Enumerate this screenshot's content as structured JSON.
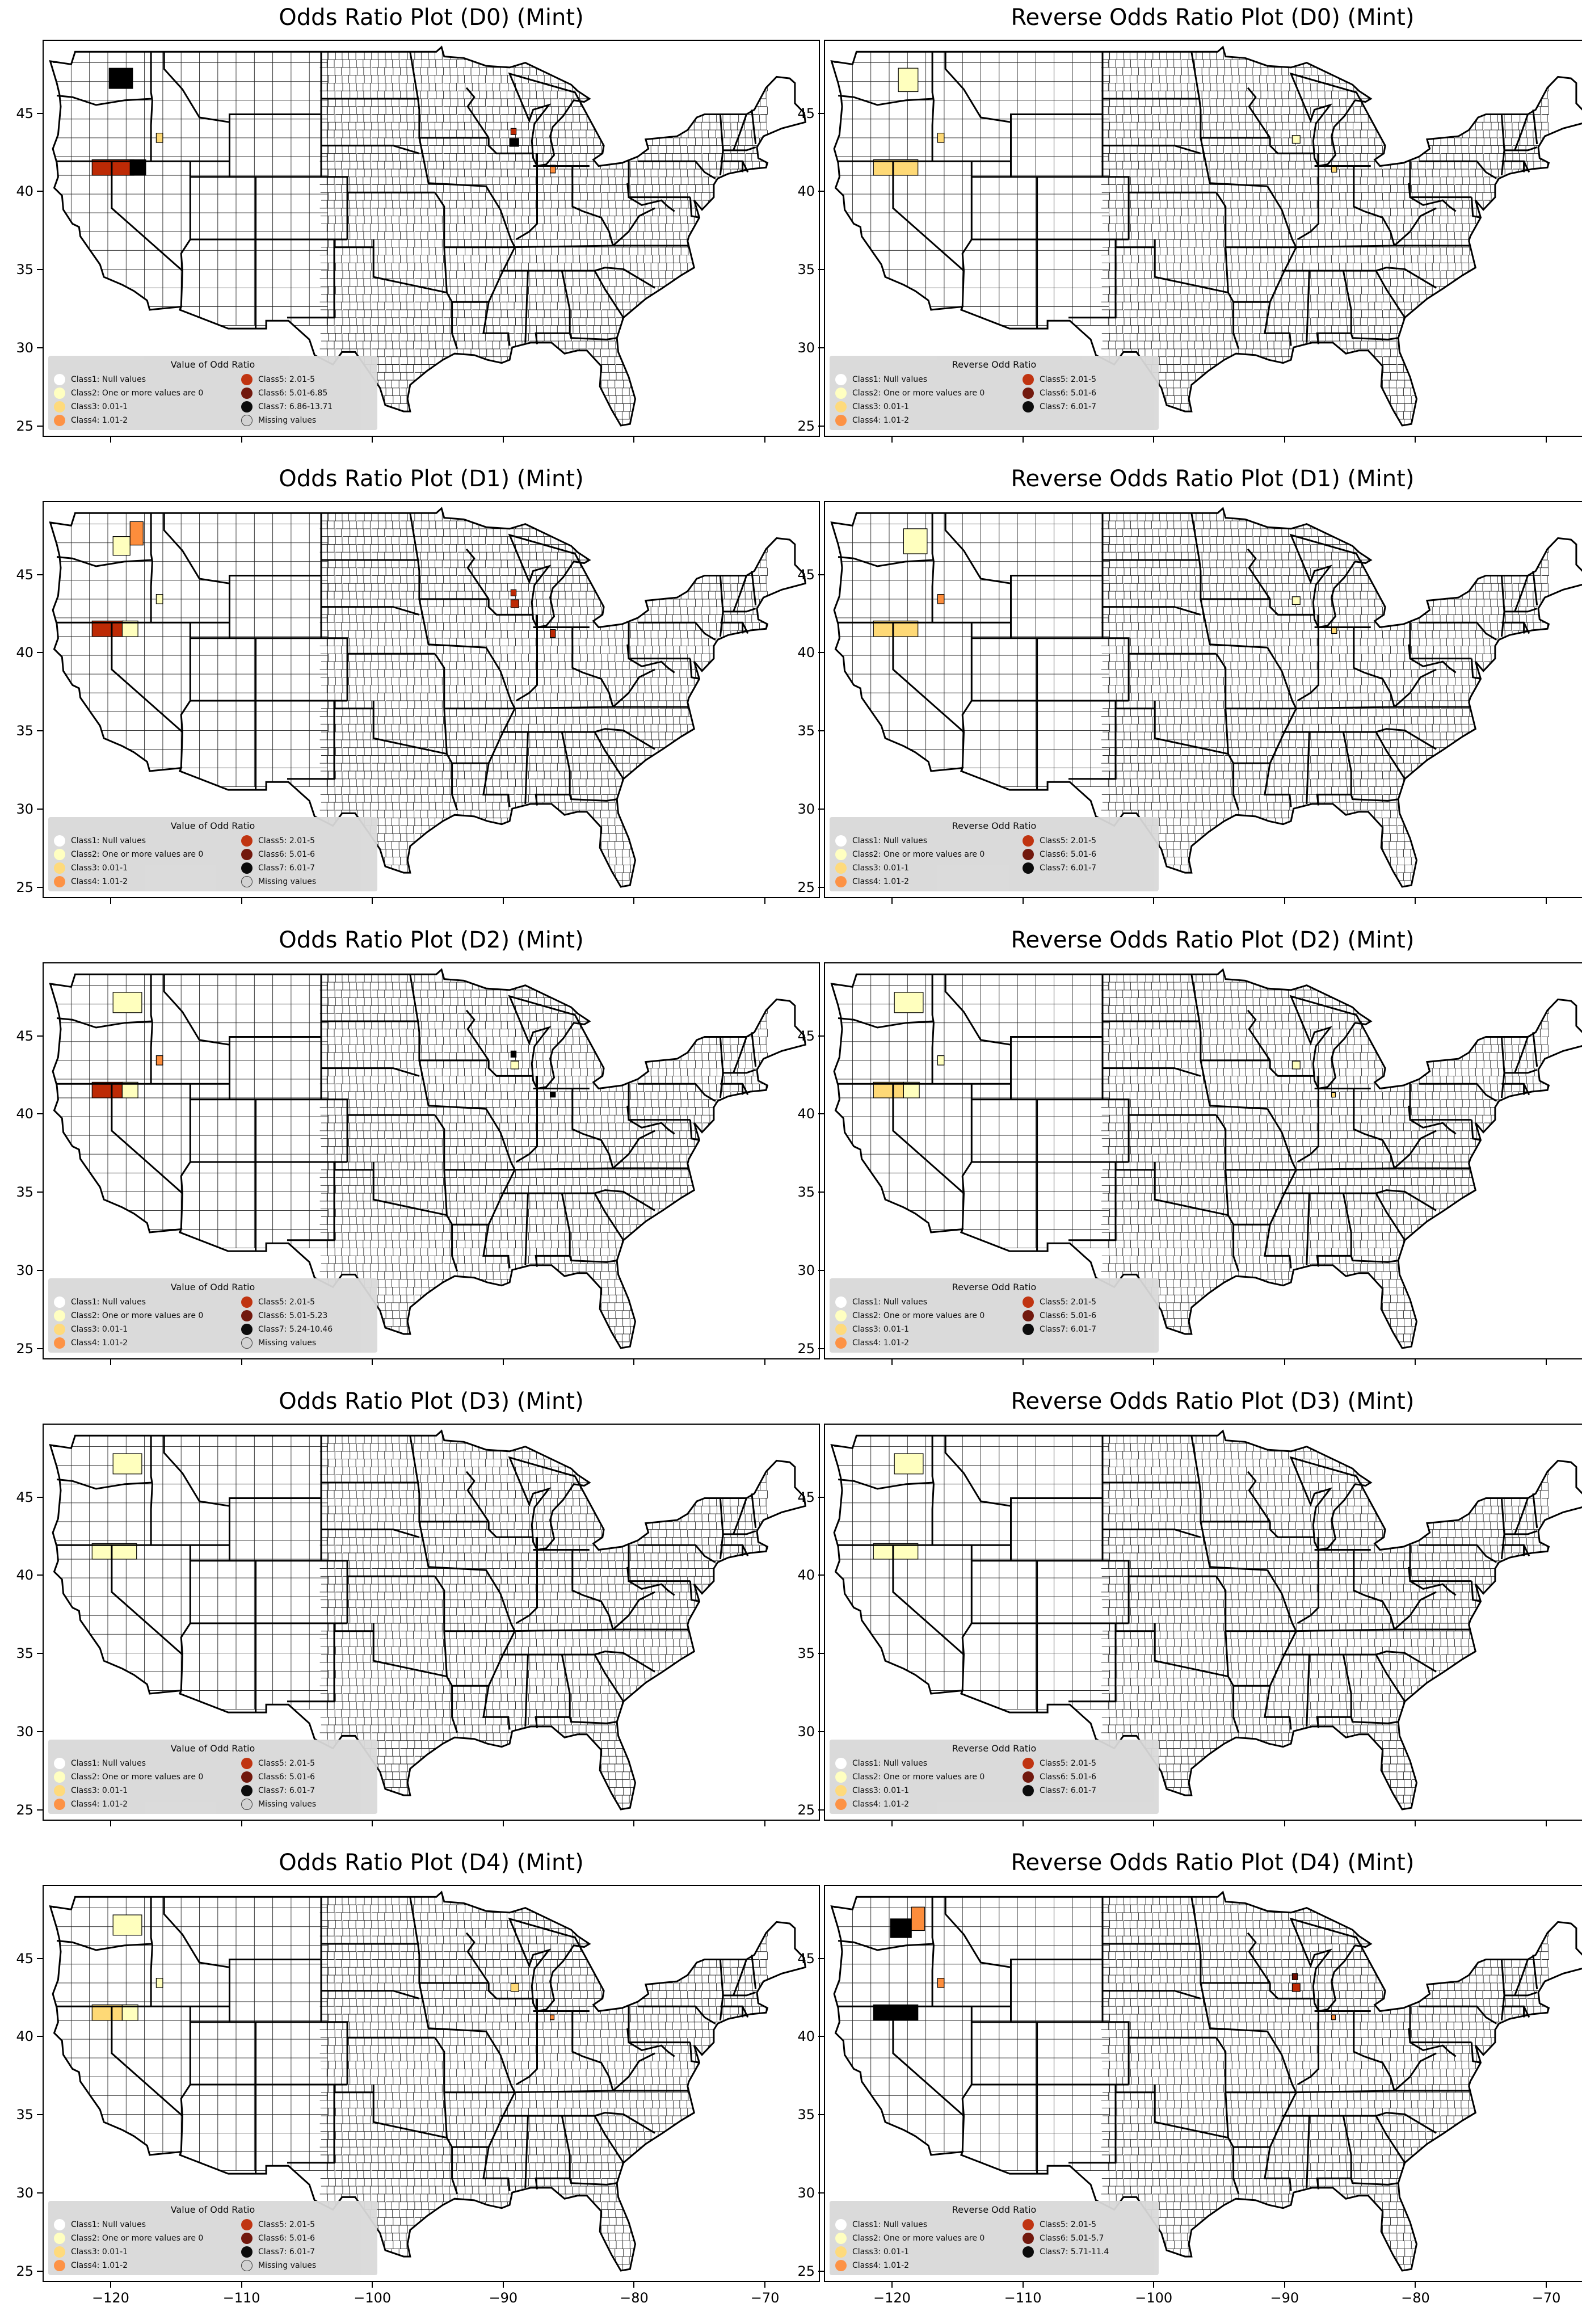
{
  "colors": {
    "class1": "#ffffff",
    "class2": "#ffffbe",
    "class3": "#fed976",
    "class4": "#fd8d3c",
    "class5": "#bd2a05",
    "class6": "#6b0d02",
    "class7": "#000000",
    "missing": "#d0d0d0"
  },
  "axes": {
    "x_ticks": [
      "−120",
      "−110",
      "−100",
      "−90",
      "−80",
      "−70"
    ],
    "y_ticks": [
      "45",
      "40",
      "35",
      "30",
      "25"
    ]
  },
  "panels": [
    {
      "title": "Odds Ratio Plot (D0) (Mint)",
      "legend_title": "Value of Odd Ratio",
      "legend_items": [
        {
          "label": "Class1: Null values",
          "color": "class1"
        },
        {
          "label": "Class5: 2.01-5",
          "color": "class5"
        },
        {
          "label": "Class2: One or more values are 0",
          "color": "class2"
        },
        {
          "label": "Class6: 5.01-6.85",
          "color": "class6"
        },
        {
          "label": "Class3: 0.01-1",
          "color": "class3"
        },
        {
          "label": "Class7: 6.86-13.71",
          "color": "class7"
        },
        {
          "label": "Class4: 1.01-2",
          "color": "class4"
        },
        {
          "label": "Missing values",
          "color": "missing"
        }
      ],
      "highlights": [
        {
          "lon": -121.5,
          "lat": 41.6,
          "w": 3.2,
          "h": 1.0,
          "cls": "class5"
        },
        {
          "lon": -118.6,
          "lat": 41.6,
          "w": 1.2,
          "h": 1.0,
          "cls": "class7"
        },
        {
          "lon": -120.2,
          "lat": 47.3,
          "w": 1.8,
          "h": 1.3,
          "cls": "class7"
        },
        {
          "lon": -116.6,
          "lat": 43.5,
          "w": 0.5,
          "h": 0.6,
          "cls": "class3"
        },
        {
          "lon": -89.6,
          "lat": 43.2,
          "w": 0.7,
          "h": 0.5,
          "cls": "class7"
        },
        {
          "lon": -89.5,
          "lat": 43.9,
          "w": 0.4,
          "h": 0.4,
          "cls": "class5"
        },
        {
          "lon": -86.5,
          "lat": 41.5,
          "w": 0.4,
          "h": 0.5,
          "cls": "class4"
        }
      ]
    },
    {
      "title": "Reverse Odds Ratio Plot (D0) (Mint)",
      "legend_title": "Reverse Odd Ratio",
      "legend_items": [
        {
          "label": "Class1: Null values",
          "color": "class1"
        },
        {
          "label": "Class5: 2.01-5",
          "color": "class5"
        },
        {
          "label": "Class2: One or more values are 0",
          "color": "class2"
        },
        {
          "label": "Class6: 5.01-6",
          "color": "class6"
        },
        {
          "label": "Class3: 0.01-1",
          "color": "class3"
        },
        {
          "label": "Class7: 6.01-7",
          "color": "class7"
        },
        {
          "label": "Class4: 1.01-2",
          "color": "class4"
        }
      ],
      "highlights": [
        {
          "lon": -121.5,
          "lat": 41.6,
          "w": 3.4,
          "h": 1.0,
          "cls": "class3"
        },
        {
          "lon": -119.6,
          "lat": 47.2,
          "w": 1.5,
          "h": 1.5,
          "cls": "class2"
        },
        {
          "lon": -116.6,
          "lat": 43.5,
          "w": 0.5,
          "h": 0.6,
          "cls": "class3"
        },
        {
          "lon": -89.5,
          "lat": 43.4,
          "w": 0.6,
          "h": 0.5,
          "cls": "class2"
        },
        {
          "lon": -86.5,
          "lat": 41.5,
          "w": 0.4,
          "h": 0.4,
          "cls": "class3"
        }
      ]
    },
    {
      "title": "Odds Ratio Plot (D1) (Mint)",
      "legend_title": "Value of Odd Ratio",
      "legend_items": [
        {
          "label": "Class1: Null values",
          "color": "class1"
        },
        {
          "label": "Class5: 2.01-5",
          "color": "class5"
        },
        {
          "label": "Class2: One or more values are 0",
          "color": "class2"
        },
        {
          "label": "Class6: 5.01-6",
          "color": "class6"
        },
        {
          "label": "Class3: 0.01-1",
          "color": "class3"
        },
        {
          "label": "Class7: 6.01-7",
          "color": "class7"
        },
        {
          "label": "Class4: 1.01-2",
          "color": "class4"
        },
        {
          "label": "Missing values",
          "color": "missing"
        }
      ],
      "highlights": [
        {
          "lon": -121.5,
          "lat": 41.6,
          "w": 2.4,
          "h": 1.0,
          "cls": "class5"
        },
        {
          "lon": -119.2,
          "lat": 41.6,
          "w": 1.2,
          "h": 1.0,
          "cls": "class2"
        },
        {
          "lon": -119.9,
          "lat": 46.9,
          "w": 1.3,
          "h": 1.2,
          "cls": "class2"
        },
        {
          "lon": -118.6,
          "lat": 47.7,
          "w": 1.0,
          "h": 1.5,
          "cls": "class4"
        },
        {
          "lon": -116.6,
          "lat": 43.5,
          "w": 0.5,
          "h": 0.6,
          "cls": "class2"
        },
        {
          "lon": -89.5,
          "lat": 43.2,
          "w": 0.6,
          "h": 0.5,
          "cls": "class5"
        },
        {
          "lon": -89.5,
          "lat": 43.9,
          "w": 0.4,
          "h": 0.4,
          "cls": "class5"
        },
        {
          "lon": -86.5,
          "lat": 41.3,
          "w": 0.4,
          "h": 0.5,
          "cls": "class5"
        }
      ]
    },
    {
      "title": "Reverse Odds Ratio Plot (D1) (Mint)",
      "legend_title": "Reverse Odd Ratio",
      "legend_items": [
        {
          "label": "Class1: Null values",
          "color": "class1"
        },
        {
          "label": "Class5: 2.01-5",
          "color": "class5"
        },
        {
          "label": "Class2: One or more values are 0",
          "color": "class2"
        },
        {
          "label": "Class6: 5.01-6",
          "color": "class6"
        },
        {
          "label": "Class3: 0.01-1",
          "color": "class3"
        },
        {
          "label": "Class7: 6.01-7",
          "color": "class7"
        },
        {
          "label": "Class4: 1.01-2",
          "color": "class4"
        }
      ],
      "highlights": [
        {
          "lon": -121.5,
          "lat": 41.6,
          "w": 3.4,
          "h": 1.0,
          "cls": "class3"
        },
        {
          "lon": -119.2,
          "lat": 47.2,
          "w": 1.8,
          "h": 1.6,
          "cls": "class2"
        },
        {
          "lon": -116.6,
          "lat": 43.5,
          "w": 0.5,
          "h": 0.6,
          "cls": "class4"
        },
        {
          "lon": -89.5,
          "lat": 43.4,
          "w": 0.6,
          "h": 0.5,
          "cls": "class2"
        },
        {
          "lon": -86.5,
          "lat": 41.5,
          "w": 0.4,
          "h": 0.4,
          "cls": "class3"
        }
      ]
    },
    {
      "title": "Odds Ratio Plot (D2) (Mint)",
      "legend_title": "Value of Odd Ratio",
      "legend_items": [
        {
          "label": "Class1: Null values",
          "color": "class1"
        },
        {
          "label": "Class5: 2.01-5",
          "color": "class5"
        },
        {
          "label": "Class2: One or more values are 0",
          "color": "class2"
        },
        {
          "label": "Class6: 5.01-5.23",
          "color": "class6"
        },
        {
          "label": "Class3: 0.01-1",
          "color": "class3"
        },
        {
          "label": "Class7: 5.24-10.46",
          "color": "class7"
        },
        {
          "label": "Class4: 1.01-2",
          "color": "class4"
        },
        {
          "label": "Missing values",
          "color": "missing"
        }
      ],
      "highlights": [
        {
          "lon": -121.5,
          "lat": 41.6,
          "w": 2.3,
          "h": 1.0,
          "cls": "class5"
        },
        {
          "lon": -119.2,
          "lat": 41.6,
          "w": 1.2,
          "h": 1.0,
          "cls": "class2"
        },
        {
          "lon": -119.9,
          "lat": 47.2,
          "w": 2.2,
          "h": 1.3,
          "cls": "class2"
        },
        {
          "lon": -116.6,
          "lat": 43.5,
          "w": 0.5,
          "h": 0.6,
          "cls": "class4"
        },
        {
          "lon": -89.5,
          "lat": 43.2,
          "w": 0.6,
          "h": 0.5,
          "cls": "class2"
        },
        {
          "lon": -89.5,
          "lat": 43.9,
          "w": 0.4,
          "h": 0.4,
          "cls": "class7"
        },
        {
          "lon": -86.5,
          "lat": 41.3,
          "w": 0.4,
          "h": 0.3,
          "cls": "class7"
        }
      ]
    },
    {
      "title": "Reverse Odds Ratio Plot (D2) (Mint)",
      "legend_title": "Reverse Odd Ratio",
      "legend_items": [
        {
          "label": "Class1: Null values",
          "color": "class1"
        },
        {
          "label": "Class5: 2.01-5",
          "color": "class5"
        },
        {
          "label": "Class2: One or more values are 0",
          "color": "class2"
        },
        {
          "label": "Class6: 5.01-6",
          "color": "class6"
        },
        {
          "label": "Class3: 0.01-1",
          "color": "class3"
        },
        {
          "label": "Class7: 6.01-7",
          "color": "class7"
        },
        {
          "label": "Class4: 1.01-2",
          "color": "class4"
        }
      ],
      "highlights": [
        {
          "lon": -121.5,
          "lat": 41.6,
          "w": 2.3,
          "h": 1.0,
          "cls": "class3"
        },
        {
          "lon": -119.2,
          "lat": 41.6,
          "w": 1.2,
          "h": 1.0,
          "cls": "class2"
        },
        {
          "lon": -119.9,
          "lat": 47.2,
          "w": 2.2,
          "h": 1.3,
          "cls": "class2"
        },
        {
          "lon": -116.6,
          "lat": 43.5,
          "w": 0.5,
          "h": 0.6,
          "cls": "class2"
        },
        {
          "lon": -89.5,
          "lat": 43.2,
          "w": 0.6,
          "h": 0.5,
          "cls": "class2"
        },
        {
          "lon": -86.5,
          "lat": 41.3,
          "w": 0.3,
          "h": 0.3,
          "cls": "class3"
        }
      ]
    },
    {
      "title": "Odds Ratio Plot (D3) (Mint)",
      "legend_title": "Value of Odd Ratio",
      "legend_items": [
        {
          "label": "Class1: Null values",
          "color": "class1"
        },
        {
          "label": "Class5: 2.01-5",
          "color": "class5"
        },
        {
          "label": "Class2: One or more values are 0",
          "color": "class2"
        },
        {
          "label": "Class6: 5.01-6",
          "color": "class6"
        },
        {
          "label": "Class3: 0.01-1",
          "color": "class3"
        },
        {
          "label": "Class7: 6.01-7",
          "color": "class7"
        },
        {
          "label": "Class4: 1.01-2",
          "color": "class4"
        },
        {
          "label": "Missing values",
          "color": "missing"
        }
      ],
      "highlights": [
        {
          "lon": -121.5,
          "lat": 41.6,
          "w": 3.4,
          "h": 1.0,
          "cls": "class2"
        },
        {
          "lon": -119.9,
          "lat": 47.2,
          "w": 2.2,
          "h": 1.3,
          "cls": "class2"
        }
      ]
    },
    {
      "title": "Reverse Odds Ratio Plot (D3) (Mint)",
      "legend_title": "Reverse Odd Ratio",
      "legend_items": [
        {
          "label": "Class1: Null values",
          "color": "class1"
        },
        {
          "label": "Class5: 2.01-5",
          "color": "class5"
        },
        {
          "label": "Class2: One or more values are 0",
          "color": "class2"
        },
        {
          "label": "Class6: 5.01-6",
          "color": "class6"
        },
        {
          "label": "Class3: 0.01-1",
          "color": "class3"
        },
        {
          "label": "Class7: 6.01-7",
          "color": "class7"
        },
        {
          "label": "Class4: 1.01-2",
          "color": "class4"
        }
      ],
      "highlights": [
        {
          "lon": -121.5,
          "lat": 41.6,
          "w": 3.4,
          "h": 1.0,
          "cls": "class2"
        },
        {
          "lon": -119.9,
          "lat": 47.2,
          "w": 2.2,
          "h": 1.3,
          "cls": "class2"
        }
      ]
    },
    {
      "title": "Odds Ratio Plot (D4) (Mint)",
      "legend_title": "Value of Odd Ratio",
      "legend_items": [
        {
          "label": "Class1: Null values",
          "color": "class1"
        },
        {
          "label": "Class5: 2.01-5",
          "color": "class5"
        },
        {
          "label": "Class2: One or more values are 0",
          "color": "class2"
        },
        {
          "label": "Class6: 5.01-6",
          "color": "class6"
        },
        {
          "label": "Class3: 0.01-1",
          "color": "class3"
        },
        {
          "label": "Class7: 6.01-7",
          "color": "class7"
        },
        {
          "label": "Class4: 1.01-2",
          "color": "class4"
        },
        {
          "label": "Missing values",
          "color": "missing"
        }
      ],
      "highlights": [
        {
          "lon": -121.5,
          "lat": 41.6,
          "w": 2.3,
          "h": 1.0,
          "cls": "class3"
        },
        {
          "lon": -119.2,
          "lat": 41.6,
          "w": 1.2,
          "h": 1.0,
          "cls": "class2"
        },
        {
          "lon": -119.9,
          "lat": 47.2,
          "w": 2.2,
          "h": 1.3,
          "cls": "class2"
        },
        {
          "lon": -116.6,
          "lat": 43.5,
          "w": 0.5,
          "h": 0.6,
          "cls": "class2"
        },
        {
          "lon": -89.5,
          "lat": 43.2,
          "w": 0.6,
          "h": 0.5,
          "cls": "class3"
        },
        {
          "lon": -86.5,
          "lat": 41.3,
          "w": 0.3,
          "h": 0.3,
          "cls": "class4"
        }
      ]
    },
    {
      "title": "Reverse Odds Ratio Plot (D4) (Mint)",
      "legend_title": "Reverse Odd Ratio",
      "legend_items": [
        {
          "label": "Class1: Null values",
          "color": "class1"
        },
        {
          "label": "Class5: 2.01-5",
          "color": "class5"
        },
        {
          "label": "Class2: One or more values are 0",
          "color": "class2"
        },
        {
          "label": "Class6: 5.01-5.7",
          "color": "class6"
        },
        {
          "label": "Class3: 0.01-1",
          "color": "class3"
        },
        {
          "label": "Class7: 5.71-11.4",
          "color": "class7"
        },
        {
          "label": "Class4: 1.01-2",
          "color": "class4"
        }
      ],
      "highlights": [
        {
          "lon": -121.5,
          "lat": 41.6,
          "w": 3.4,
          "h": 1.0,
          "cls": "class7"
        },
        {
          "lon": -120.2,
          "lat": 47.0,
          "w": 1.6,
          "h": 1.2,
          "cls": "class7"
        },
        {
          "lon": -118.6,
          "lat": 47.6,
          "w": 1.0,
          "h": 1.5,
          "cls": "class4"
        },
        {
          "lon": -116.6,
          "lat": 43.5,
          "w": 0.5,
          "h": 0.6,
          "cls": "class4"
        },
        {
          "lon": -89.5,
          "lat": 43.2,
          "w": 0.6,
          "h": 0.5,
          "cls": "class5"
        },
        {
          "lon": -89.5,
          "lat": 43.9,
          "w": 0.4,
          "h": 0.4,
          "cls": "class6"
        },
        {
          "lon": -86.5,
          "lat": 41.3,
          "w": 0.3,
          "h": 0.3,
          "cls": "class4"
        }
      ]
    }
  ]
}
